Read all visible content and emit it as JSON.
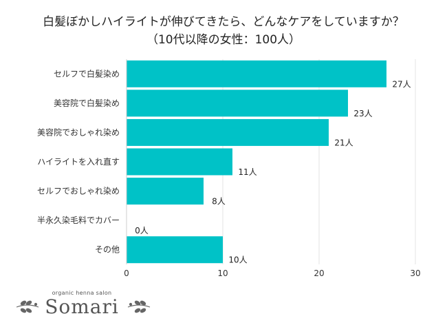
{
  "header": {
    "title": "白髪ぼかしハイライトが伸びてきたら、どんなケアをしていますか？",
    "subtitle": "（10代以降の女性：100人）"
  },
  "chart_data": {
    "type": "bar",
    "orientation": "horizontal",
    "categories": [
      "セルフで白髪染め",
      "美容院で白髪染め",
      "美容院でおしゃれ染め",
      "ハイライトを入れ直す",
      "セルフでおしゃれ染め",
      "半永久染毛料でカバー",
      "その他"
    ],
    "values": [
      27,
      23,
      21,
      11,
      8,
      0,
      10
    ],
    "value_labels": [
      "27人",
      "23人",
      "21人",
      "11人",
      "8人",
      "0人",
      "10人"
    ],
    "xlim": [
      0,
      30
    ],
    "xticks": [
      "0",
      "10",
      "20",
      "30"
    ],
    "grid": true,
    "bar_color": "#00c2c7"
  },
  "logo": {
    "tagline": "organic henna salon",
    "name": "Somari"
  }
}
